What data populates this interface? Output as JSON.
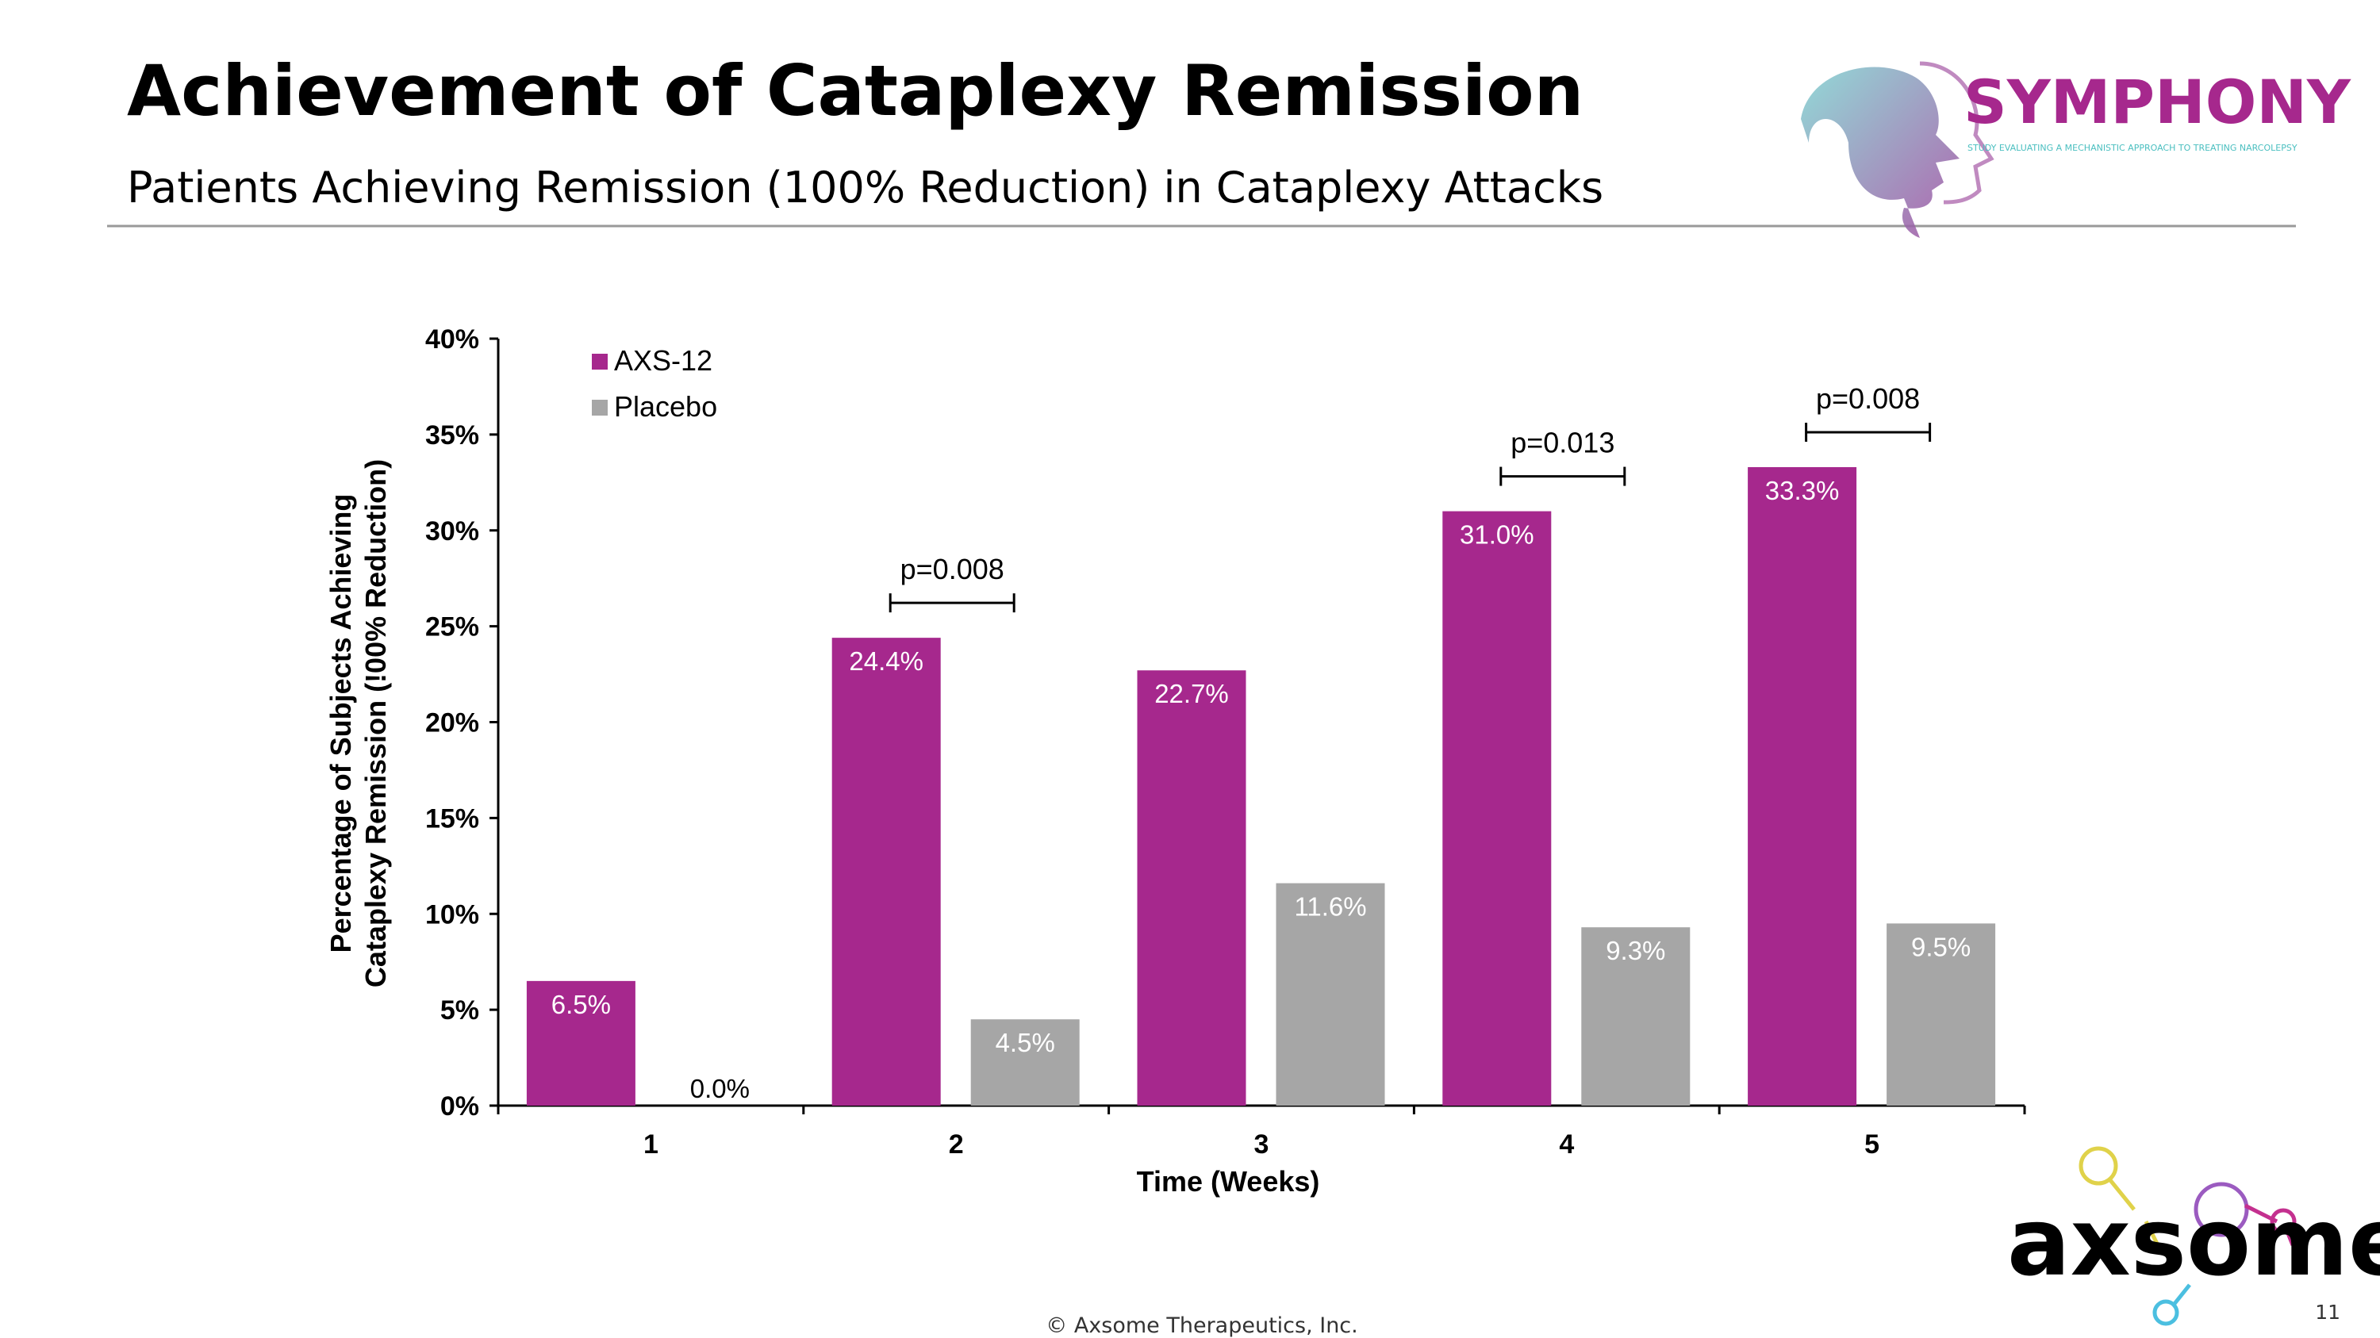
{
  "header": {
    "title": "Achievement of Cataplexy Remission",
    "subtitle": "Patients Achieving Remission (100% Reduction) in Cataplexy Attacks"
  },
  "logo": {
    "name": "SYMPHONY",
    "tagline": "STUDY EVALUATING A MECHANISTIC APPROACH TO TREATING NARCOLEPSY"
  },
  "chart_data": {
    "type": "bar",
    "categories": [
      "1",
      "2",
      "3",
      "4",
      "5"
    ],
    "series": [
      {
        "name": "AXS-12",
        "color": "#a6288d",
        "values": [
          6.5,
          24.4,
          22.7,
          31.0,
          33.3
        ],
        "value_labels": [
          "6.5%",
          "24.4%",
          "22.7%",
          "31.0%",
          "33.3%"
        ]
      },
      {
        "name": "Placebo",
        "color": "#a6a6a6",
        "values": [
          0.0,
          4.5,
          11.6,
          9.3,
          9.5
        ],
        "value_labels": [
          "0.0%",
          "4.5%",
          "11.6%",
          "9.3%",
          "9.5%"
        ]
      }
    ],
    "ylim": [
      0,
      40
    ],
    "yticks": [
      {
        "value": 0,
        "label": "0%"
      },
      {
        "value": 5,
        "label": "5%"
      },
      {
        "value": 10,
        "label": "10%"
      },
      {
        "value": 15,
        "label": "15%"
      },
      {
        "value": 20,
        "label": "20%"
      },
      {
        "value": 25,
        "label": "25%"
      },
      {
        "value": 30,
        "label": "30%"
      },
      {
        "value": 35,
        "label": "35%"
      },
      {
        "value": 40,
        "label": "40%"
      }
    ],
    "xlabel": "Time (Weeks)",
    "ylabel": [
      "Percentage of Subjects Achieving",
      "Cataplexy Remission (!00% Reduction)"
    ],
    "legend": "upper left",
    "annotations": [
      {
        "x": "2",
        "text": "p=0.008"
      },
      {
        "x": "4",
        "text": "p=0.013"
      },
      {
        "x": "5",
        "text": "p=0.008"
      }
    ]
  },
  "footer": {
    "copyright": "© Axsome Therapeutics, Inc.",
    "page": "11",
    "brand": "axsome"
  }
}
